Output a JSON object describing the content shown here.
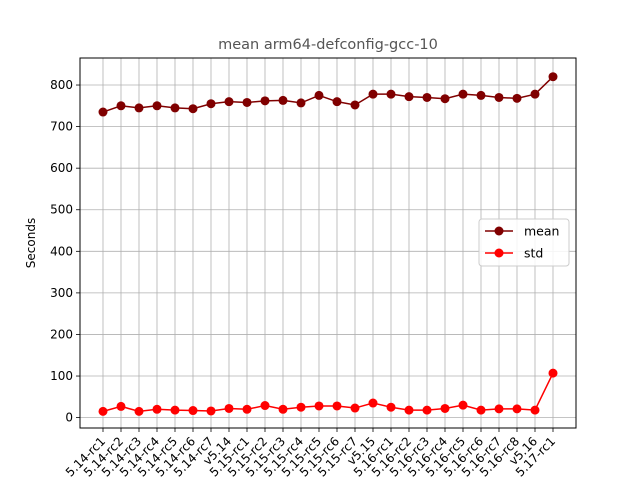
{
  "chart_data": {
    "type": "line",
    "title": "mean arm64-defconfig-gcc-10",
    "xlabel": "",
    "ylabel": "Seconds",
    "categories": [
      "5.14-rc1",
      "5.14-rc2",
      "5.14-rc3",
      "5.14-rc4",
      "5.14-rc5",
      "5.14-rc6",
      "5.14-rc7",
      "v5.14",
      "5.15-rc1",
      "5.15-rc2",
      "5.15-rc3",
      "5.15-rc4",
      "5.15-rc5",
      "5.15-rc6",
      "5.15-rc7",
      "v5.15",
      "5.16-rc1",
      "5.16-rc2",
      "5.16-rc3",
      "5.16-rc4",
      "5.16-rc5",
      "5.16-rc6",
      "5.16-rc7",
      "5.16-rc8",
      "v5.16",
      "5.17-rc1"
    ],
    "ylim": [
      -25,
      865
    ],
    "yticks": [
      0,
      100,
      200,
      300,
      400,
      500,
      600,
      700,
      800
    ],
    "grid": true,
    "legend_position": "center-right",
    "series": [
      {
        "name": "mean",
        "color": "#800000",
        "values": [
          735,
          750,
          745,
          750,
          745,
          743,
          755,
          760,
          758,
          762,
          763,
          757,
          775,
          760,
          752,
          778,
          778,
          772,
          770,
          767,
          778,
          775,
          770,
          768,
          778,
          820
        ]
      },
      {
        "name": "std",
        "color": "#ff0000",
        "values": [
          15,
          27,
          15,
          20,
          18,
          17,
          16,
          22,
          20,
          29,
          20,
          25,
          28,
          28,
          23,
          35,
          25,
          18,
          18,
          22,
          30,
          18,
          21,
          21,
          18,
          107
        ]
      }
    ]
  }
}
